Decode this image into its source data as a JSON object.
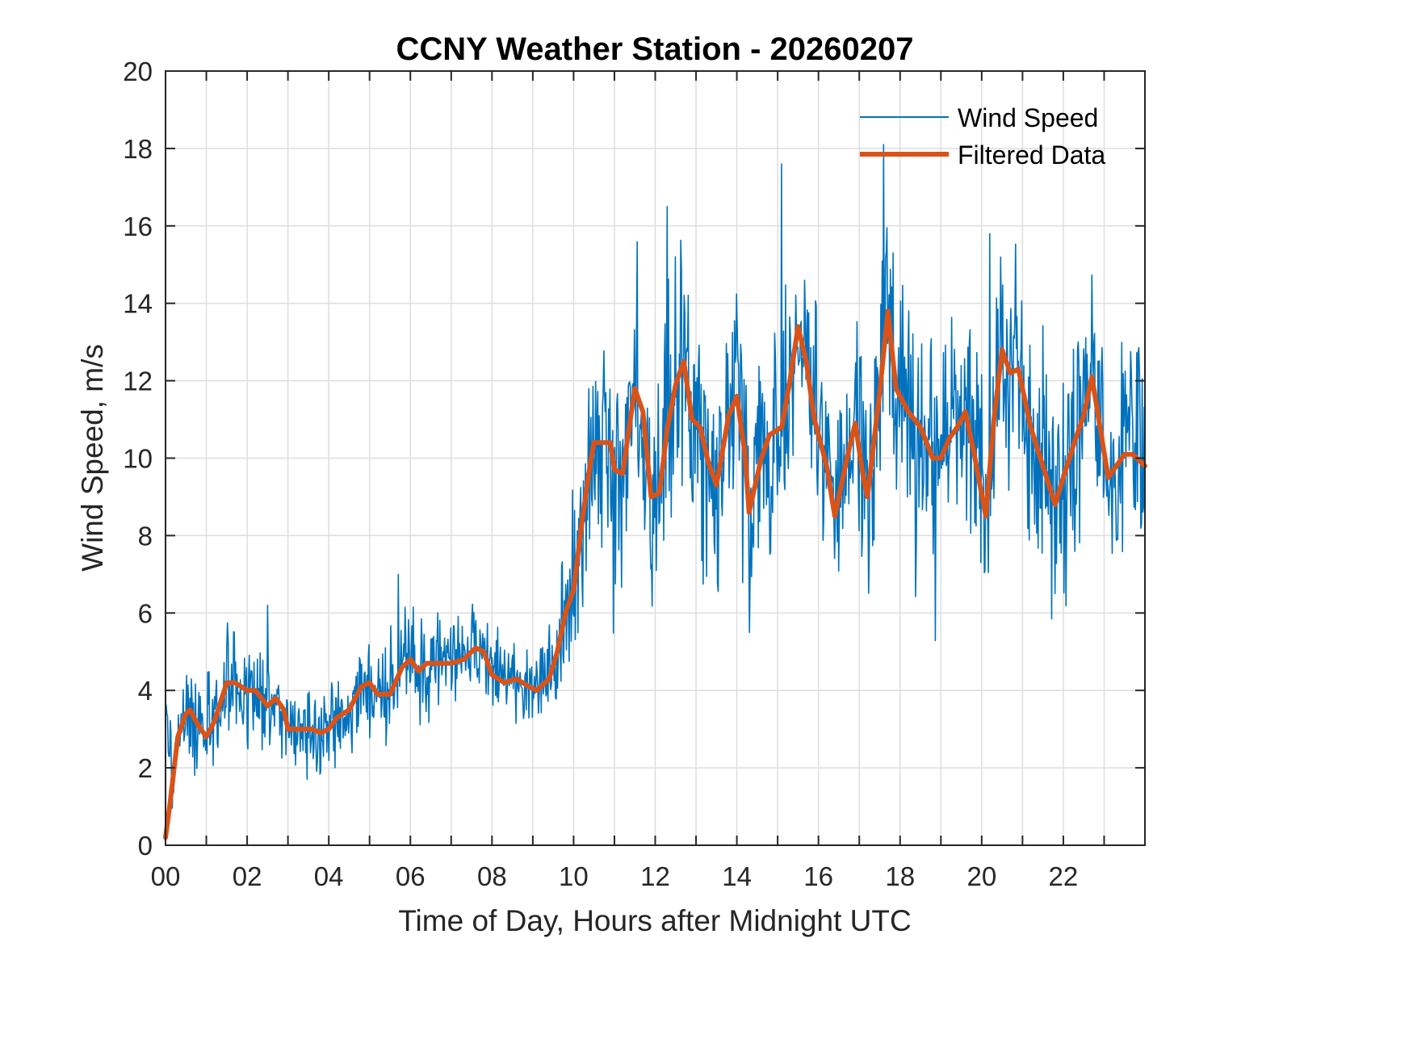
{
  "chart_data": {
    "type": "line",
    "title": "CCNY Weather Station - 20260207",
    "xlabel": "Time of Day, Hours after Midnight UTC",
    "ylabel": "Wind Speed, m/s",
    "xlim": [
      0,
      24
    ],
    "ylim": [
      0,
      20
    ],
    "xticks": [
      0,
      2,
      4,
      6,
      8,
      10,
      12,
      14,
      16,
      18,
      20,
      22
    ],
    "xtick_labels": [
      "00",
      "02",
      "04",
      "06",
      "08",
      "10",
      "12",
      "14",
      "16",
      "18",
      "20",
      "22"
    ],
    "xminor_grid_step": 1,
    "yticks": [
      0,
      2,
      4,
      6,
      8,
      10,
      12,
      14,
      16,
      18,
      20
    ],
    "ytick_labels": [
      "0",
      "2",
      "4",
      "6",
      "8",
      "10",
      "12",
      "14",
      "16",
      "18",
      "20"
    ],
    "grid": true,
    "legend": {
      "placement": "top-right",
      "entries": [
        "Wind Speed",
        "Filtered Data"
      ]
    },
    "series": [
      {
        "name": "Wind Speed",
        "color": "#0072BD",
        "style": "thin",
        "description": "Raw 1-minute wind speed, noisy around filtered curve; range ~1.3-4.8 before 09h, ~4.5-18.1 after 10h",
        "peak_value": 18.1,
        "peak_time_h": 17.7,
        "notable_spikes": [
          {
            "x": 12.3,
            "y": 16.5
          },
          {
            "x": 15.1,
            "y": 17.6
          },
          {
            "x": 17.6,
            "y": 18.1
          },
          {
            "x": 20.2,
            "y": 15.8
          },
          {
            "x": 2.5,
            "y": 6.2
          },
          {
            "x": 5.7,
            "y": 7.0
          }
        ],
        "noise_amplitude": [
          {
            "x": 0,
            "amp": 1.1
          },
          {
            "x": 9.5,
            "amp": 1.1
          },
          {
            "x": 10.2,
            "amp": 2.8
          },
          {
            "x": 24,
            "amp": 2.8
          }
        ]
      },
      {
        "name": "Filtered Data",
        "color": "#D95319",
        "style": "thick",
        "x": [
          0.0,
          0.1,
          0.3,
          0.5,
          0.6,
          0.8,
          1.0,
          1.2,
          1.5,
          1.7,
          2.0,
          2.2,
          2.5,
          2.7,
          2.9,
          3.0,
          3.3,
          3.6,
          3.8,
          4.0,
          4.2,
          4.5,
          4.8,
          5.0,
          5.2,
          5.5,
          5.8,
          6.0,
          6.2,
          6.4,
          6.7,
          7.0,
          7.3,
          7.6,
          7.8,
          8.0,
          8.3,
          8.6,
          8.9,
          9.1,
          9.4,
          9.6,
          9.8,
          10.0,
          10.2,
          10.4,
          10.5,
          10.7,
          10.9,
          11.0,
          11.2,
          11.5,
          11.7,
          11.9,
          12.1,
          12.3,
          12.5,
          12.7,
          12.9,
          13.1,
          13.3,
          13.5,
          13.8,
          14.0,
          14.2,
          14.3,
          14.6,
          14.8,
          15.1,
          15.3,
          15.5,
          15.7,
          15.9,
          16.2,
          16.4,
          16.7,
          16.9,
          17.1,
          17.2,
          17.5,
          17.7,
          17.9,
          18.2,
          18.5,
          18.8,
          19.0,
          19.2,
          19.4,
          19.6,
          19.8,
          20.1,
          20.3,
          20.5,
          20.7,
          20.9,
          21.2,
          21.5,
          21.8,
          22.0,
          22.3,
          22.5,
          22.7,
          22.9,
          23.1,
          23.3,
          23.5,
          23.7,
          24.0
        ],
        "y": [
          0.2,
          1.0,
          2.8,
          3.4,
          3.5,
          3.1,
          2.8,
          3.2,
          4.2,
          4.2,
          4.0,
          4.0,
          3.6,
          3.8,
          3.5,
          3.0,
          3.0,
          3.0,
          2.9,
          3.0,
          3.3,
          3.5,
          4.1,
          4.2,
          3.9,
          3.9,
          4.6,
          4.8,
          4.5,
          4.7,
          4.7,
          4.7,
          4.8,
          5.1,
          5.0,
          4.4,
          4.2,
          4.3,
          4.1,
          4.0,
          4.3,
          5.0,
          6.0,
          6.6,
          8.3,
          9.8,
          10.4,
          10.4,
          10.4,
          9.7,
          9.6,
          11.8,
          11.2,
          9.0,
          9.1,
          10.8,
          11.9,
          12.5,
          11.0,
          10.8,
          9.9,
          9.3,
          11.1,
          11.6,
          10.1,
          8.6,
          10.0,
          10.6,
          10.8,
          12.0,
          13.4,
          12.5,
          11.0,
          9.8,
          8.5,
          10.0,
          10.9,
          9.5,
          9.0,
          11.7,
          13.8,
          11.8,
          11.2,
          10.8,
          10.0,
          10.0,
          10.5,
          10.8,
          11.2,
          10.2,
          8.5,
          11.0,
          12.8,
          12.2,
          12.3,
          10.8,
          9.8,
          8.8,
          9.5,
          10.5,
          11.1,
          12.1,
          10.8,
          9.5,
          9.8,
          10.1,
          10.1,
          9.8
        ]
      }
    ]
  }
}
